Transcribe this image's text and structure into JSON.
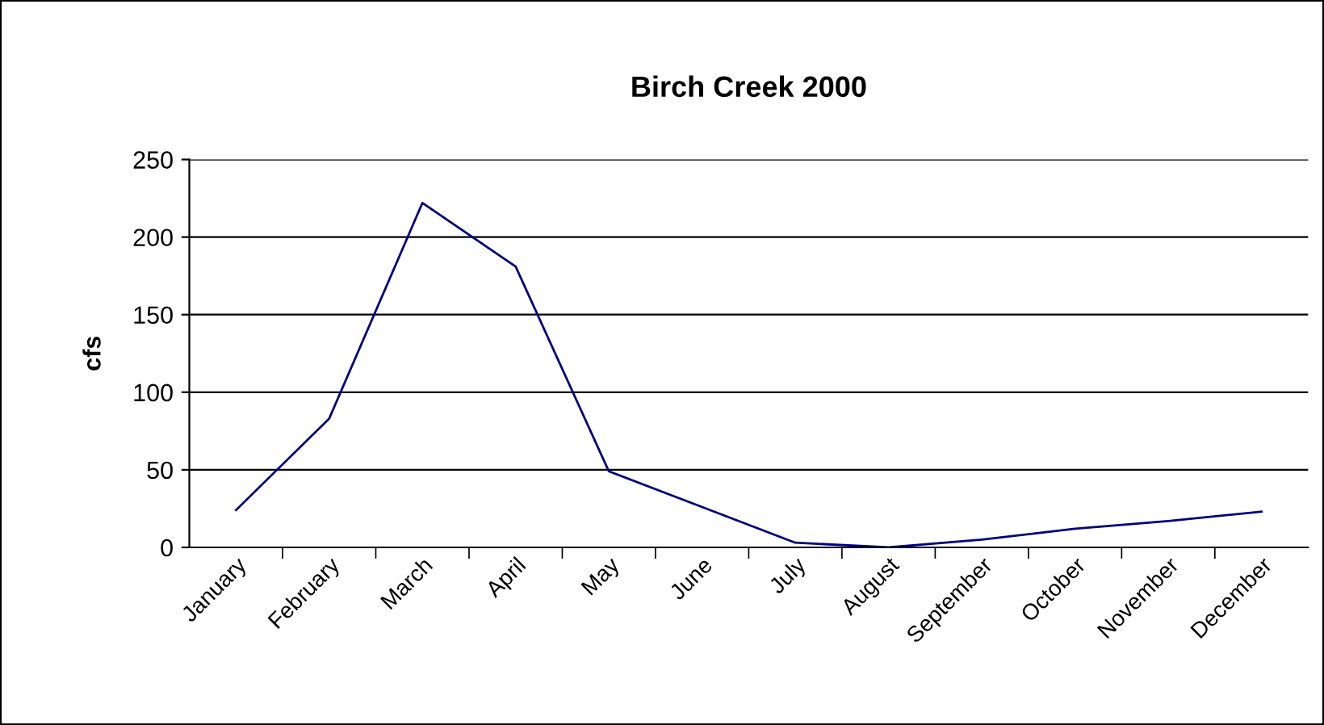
{
  "chart_data": {
    "type": "line",
    "title": "Birch Creek 2000",
    "ylabel": "cfs",
    "categories": [
      "January",
      "February",
      "March",
      "April",
      "May",
      "June",
      "July",
      "August",
      "September",
      "October",
      "November",
      "December"
    ],
    "series": [
      {
        "color": "#000080",
        "values": [
          24,
          83,
          222,
          181,
          49,
          26,
          3,
          0,
          5,
          12,
          17,
          23
        ]
      }
    ],
    "ylim": [
      0,
      250
    ],
    "yticks": [
      0,
      50,
      100,
      150,
      200,
      250
    ],
    "grid": "y",
    "line_style": "solid",
    "marker": "none"
  }
}
